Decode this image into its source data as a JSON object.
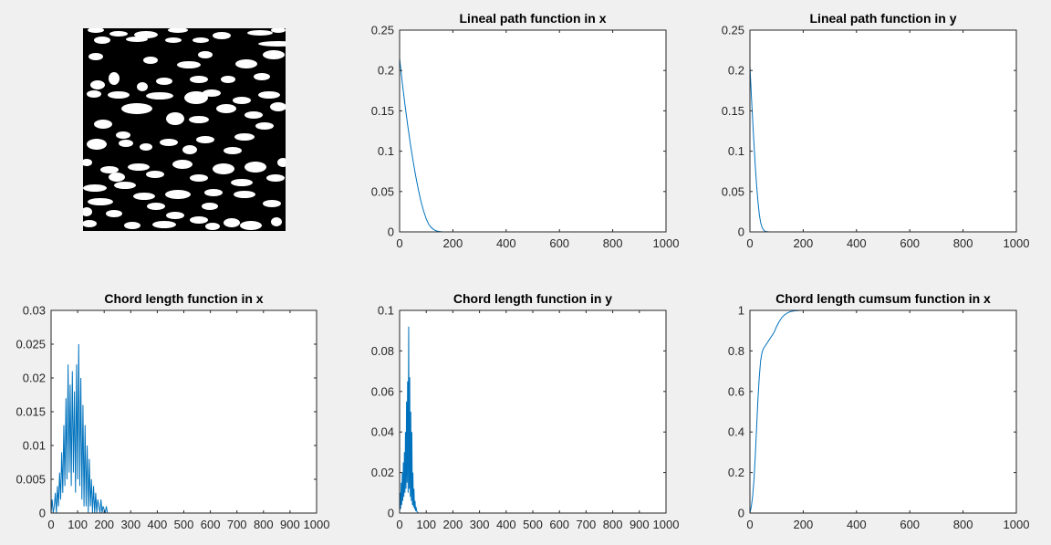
{
  "figure": {
    "background": "#f0f0f0",
    "line_color": "#0072bd"
  },
  "microstructure_image": {
    "description_icon": "binary-image",
    "foreground": "#ffffff",
    "background": "#000000"
  },
  "chart_data": [
    {
      "type": "line",
      "title": "Lineal path function in x",
      "xlabel": "",
      "ylabel": "",
      "xlim": [
        0,
        1000
      ],
      "ylim": [
        0,
        0.25
      ],
      "xticks": [
        0,
        200,
        400,
        600,
        800,
        1000
      ],
      "yticks": [
        0,
        0.05,
        0.1,
        0.15,
        0.2,
        0.25
      ],
      "xtick_labels": [
        "0",
        "200",
        "400",
        "600",
        "800",
        "1000"
      ],
      "ytick_labels": [
        "0",
        "0.05",
        "0.1",
        "0.15",
        "0.2",
        "0.25"
      ],
      "grid": false,
      "series": [
        {
          "x": [
            0,
            5,
            10,
            20,
            30,
            40,
            50,
            60,
            70,
            80,
            90,
            100,
            110,
            120,
            130,
            140,
            150,
            160,
            180,
            200,
            300,
            400,
            600,
            800,
            1000
          ],
          "y": [
            0.215,
            0.2,
            0.185,
            0.158,
            0.133,
            0.11,
            0.089,
            0.07,
            0.053,
            0.038,
            0.026,
            0.016,
            0.009,
            0.005,
            0.0025,
            0.001,
            0.0004,
            0.0001,
            0,
            0,
            0,
            0,
            0,
            0,
            0
          ]
        }
      ]
    },
    {
      "type": "line",
      "title": "Lineal path function in y",
      "xlabel": "",
      "ylabel": "",
      "xlim": [
        0,
        1000
      ],
      "ylim": [
        0,
        0.25
      ],
      "xticks": [
        0,
        200,
        400,
        600,
        800,
        1000
      ],
      "yticks": [
        0,
        0.05,
        0.1,
        0.15,
        0.2,
        0.25
      ],
      "xtick_labels": [
        "0",
        "200",
        "400",
        "600",
        "800",
        "1000"
      ],
      "ytick_labels": [
        "0",
        "0.05",
        "0.1",
        "0.15",
        "0.2",
        "0.25"
      ],
      "grid": false,
      "series": [
        {
          "x": [
            0,
            3,
            6,
            10,
            15,
            20,
            25,
            30,
            35,
            40,
            45,
            50,
            55,
            60,
            70,
            80,
            100,
            200,
            400,
            600,
            800,
            1000
          ],
          "y": [
            0.205,
            0.185,
            0.165,
            0.14,
            0.11,
            0.082,
            0.058,
            0.038,
            0.022,
            0.012,
            0.006,
            0.003,
            0.0012,
            0.0005,
            0.0001,
            0,
            0,
            0,
            0,
            0,
            0,
            0
          ]
        }
      ]
    },
    {
      "type": "line",
      "title": "Chord length function in x",
      "xlabel": "",
      "ylabel": "",
      "xlim": [
        0,
        1000
      ],
      "ylim": [
        0,
        0.03
      ],
      "xticks": [
        0,
        100,
        200,
        300,
        400,
        500,
        600,
        700,
        800,
        900,
        1000
      ],
      "yticks": [
        0,
        0.005,
        0.01,
        0.015,
        0.02,
        0.025,
        0.03
      ],
      "xtick_labels": [
        "0",
        "100",
        "200",
        "300",
        "400",
        "500",
        "600",
        "700",
        "800",
        "900",
        "1000"
      ],
      "ytick_labels": [
        "0",
        "0.005",
        "0.01",
        "0.015",
        "0.02",
        "0.025",
        "0.03"
      ],
      "grid": false,
      "series": [
        {
          "x": [
            0,
            4,
            8,
            12,
            16,
            20,
            24,
            28,
            32,
            36,
            40,
            44,
            48,
            52,
            56,
            60,
            64,
            68,
            72,
            76,
            80,
            84,
            88,
            92,
            96,
            100,
            104,
            108,
            112,
            116,
            120,
            124,
            128,
            132,
            136,
            140,
            144,
            148,
            152,
            156,
            160,
            164,
            168,
            172,
            176,
            180,
            184,
            188,
            192,
            196,
            200,
            204,
            208,
            212,
            220,
            300,
            400,
            500,
            600,
            700,
            800,
            900,
            1000
          ],
          "y": [
            0,
            0.002,
            0,
            0.001,
            0.003,
            0,
            0.004,
            0.001,
            0.006,
            0.002,
            0.009,
            0.003,
            0.013,
            0.004,
            0.017,
            0.005,
            0.022,
            0.006,
            0.019,
            0.004,
            0.021,
            0.006,
            0.018,
            0.003,
            0.022,
            0.005,
            0.025,
            0.004,
            0.02,
            0.002,
            0.016,
            0.001,
            0.013,
            0.001,
            0.01,
            0,
            0.008,
            0.001,
            0.005,
            0,
            0.004,
            0,
            0.003,
            0,
            0.002,
            0.001,
            0,
            0.002,
            0,
            0.001,
            0.0005,
            0,
            0.001,
            0,
            0,
            0,
            0,
            0,
            0,
            0,
            0,
            0,
            0
          ]
        }
      ]
    },
    {
      "type": "line",
      "title": "Chord length function in y",
      "xlabel": "",
      "ylabel": "",
      "xlim": [
        0,
        1000
      ],
      "ylim": [
        0,
        0.1
      ],
      "xticks": [
        0,
        100,
        200,
        300,
        400,
        500,
        600,
        700,
        800,
        900,
        1000
      ],
      "yticks": [
        0,
        0.02,
        0.04,
        0.06,
        0.08,
        0.1
      ],
      "xtick_labels": [
        "0",
        "100",
        "200",
        "300",
        "400",
        "500",
        "600",
        "700",
        "800",
        "900",
        "1000"
      ],
      "ytick_labels": [
        "0",
        "0.02",
        "0.04",
        "0.06",
        "0.08",
        "0.1"
      ],
      "grid": false,
      "series": [
        {
          "x": [
            0,
            2,
            4,
            6,
            8,
            10,
            12,
            14,
            16,
            18,
            20,
            22,
            24,
            26,
            28,
            30,
            32,
            34,
            36,
            38,
            40,
            42,
            44,
            46,
            48,
            50,
            52,
            54,
            56,
            58,
            60,
            62,
            64,
            70,
            80,
            100,
            200,
            400,
            600,
            800,
            1000
          ],
          "y": [
            0,
            0.01,
            0.002,
            0.015,
            0.004,
            0.02,
            0.006,
            0.025,
            0.008,
            0.03,
            0.01,
            0.04,
            0.012,
            0.055,
            0.015,
            0.065,
            0.01,
            0.092,
            0.012,
            0.067,
            0.008,
            0.05,
            0.006,
            0.04,
            0.004,
            0.02,
            0.003,
            0.012,
            0.002,
            0.006,
            0.001,
            0.003,
            0.001,
            0,
            0,
            0,
            0,
            0,
            0,
            0,
            0
          ]
        }
      ]
    },
    {
      "type": "line",
      "title": "Chord length cumsum function in x",
      "xlabel": "",
      "ylabel": "",
      "xlim": [
        0,
        1000
      ],
      "ylim": [
        0,
        1
      ],
      "xticks": [
        0,
        200,
        400,
        600,
        800,
        1000
      ],
      "yticks": [
        0,
        0.2,
        0.4,
        0.6,
        0.8,
        1
      ],
      "xtick_labels": [
        "0",
        "200",
        "400",
        "600",
        "800",
        "1000"
      ],
      "ytick_labels": [
        "0",
        "0.2",
        "0.4",
        "0.6",
        "0.8",
        "1"
      ],
      "grid": false,
      "series": [
        {
          "x": [
            0,
            5,
            10,
            15,
            20,
            25,
            30,
            35,
            40,
            45,
            50,
            60,
            70,
            80,
            90,
            100,
            110,
            120,
            130,
            140,
            150,
            160,
            170,
            180,
            200,
            250,
            300,
            400,
            600,
            800,
            1000
          ],
          "y": [
            0,
            0.03,
            0.08,
            0.16,
            0.28,
            0.42,
            0.56,
            0.67,
            0.75,
            0.79,
            0.81,
            0.83,
            0.85,
            0.87,
            0.89,
            0.92,
            0.945,
            0.965,
            0.978,
            0.987,
            0.993,
            0.996,
            0.998,
            0.999,
            1,
            1,
            1,
            1,
            1,
            1,
            1
          ]
        }
      ]
    }
  ]
}
